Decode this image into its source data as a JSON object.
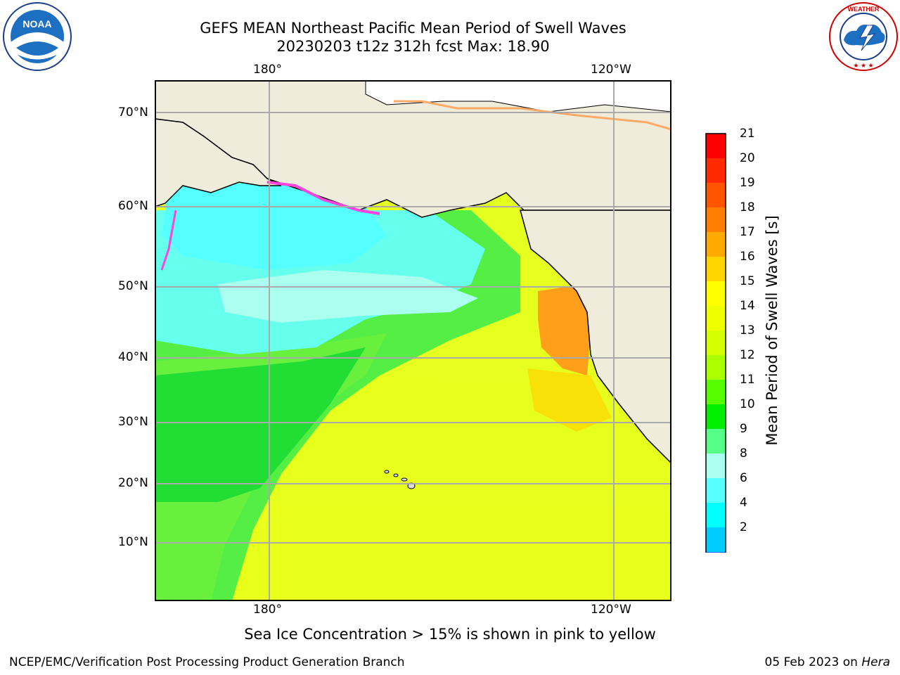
{
  "title": {
    "line1": "GEFS MEAN Northeast Pacific Mean Period of Swell Waves",
    "line2": "20230203 t12z 312h fcst   Max: 18.90"
  },
  "axes": {
    "top_labels": [
      "180°",
      "120°W"
    ],
    "bottom_labels": [
      "180°",
      "120°W"
    ],
    "left_labels": [
      "70°N",
      "60°N",
      "50°N",
      "40°N",
      "30°N",
      "20°N",
      "10°N"
    ]
  },
  "colorbar": {
    "label": "Mean Period of Swell Waves [s]",
    "ticks": [
      "21",
      "20",
      "19",
      "18",
      "17",
      "16",
      "15",
      "14",
      "13",
      "12",
      "11",
      "10",
      "9",
      "8",
      "6",
      "4",
      "2"
    ],
    "colors_top_to_bottom": [
      "#ff0000",
      "#ff2a00",
      "#ff5500",
      "#ff7f00",
      "#ffaa00",
      "#ffd400",
      "#ffff00",
      "#f0ff00",
      "#d4ff00",
      "#aaff00",
      "#55ff00",
      "#00ee00",
      "#55ff88",
      "#aaffee",
      "#55ffff",
      "#00ffff",
      "#00ccff",
      "#0066ff"
    ],
    "extend_color": "#0000ff"
  },
  "map": {
    "land_color": "#efecdc",
    "ocean_colors": {
      "cold": "#66ffff",
      "mid": "#44ee66",
      "warm": "#e6ff22",
      "hot": "#ff9f1a"
    }
  },
  "note": "Sea Ice Concentration > 15% is shown in pink to yellow",
  "footer": {
    "left": "NCEP/EMC/Verification Post Processing Product Generation Branch",
    "right_prefix": "05 Feb 2023 on ",
    "right_machine": "Hera"
  },
  "logos": {
    "noaa": "NOAA",
    "nws": "NATIONAL WEATHER SERVICE"
  }
}
